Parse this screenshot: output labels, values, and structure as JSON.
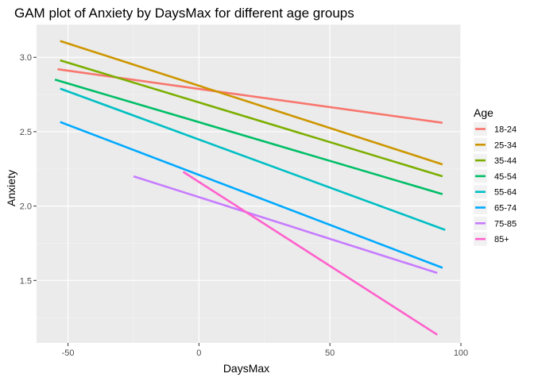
{
  "chart_data": {
    "type": "line",
    "title": "GAM plot of Anxiety by DaysMax for different age groups",
    "xlabel": "DaysMax",
    "ylabel": "Anxiety",
    "xlim": [
      -62,
      100
    ],
    "ylim": [
      1.08,
      3.22
    ],
    "xticks": [
      -50,
      0,
      50,
      100
    ],
    "xtick_labels": [
      "-50",
      "0",
      "50",
      "100"
    ],
    "yticks": [
      1.5,
      2.0,
      2.5,
      3.0
    ],
    "ytick_labels": [
      "1.5",
      "2.0",
      "2.5",
      "3.0"
    ],
    "grid": true,
    "legend": {
      "title": "Age",
      "placement": "right"
    },
    "series": [
      {
        "name": "18-24",
        "color": "#F8766D",
        "x": [
          -54,
          93
        ],
        "y": [
          2.92,
          2.56
        ]
      },
      {
        "name": "25-34",
        "color": "#CD9600",
        "x": [
          -53,
          93
        ],
        "y": [
          3.11,
          2.28
        ]
      },
      {
        "name": "35-44",
        "color": "#7CAE00",
        "x": [
          -53,
          93
        ],
        "y": [
          2.98,
          2.2
        ]
      },
      {
        "name": "45-54",
        "color": "#00BE67",
        "x": [
          -55,
          93
        ],
        "y": [
          2.85,
          2.08
        ]
      },
      {
        "name": "55-64",
        "color": "#00BFC4",
        "x": [
          -53,
          94
        ],
        "y": [
          2.79,
          1.84
        ]
      },
      {
        "name": "65-74",
        "color": "#00A9FF",
        "x": [
          -53,
          93
        ],
        "y": [
          2.565,
          1.585
        ]
      },
      {
        "name": "75-85",
        "color": "#C77CFF",
        "x": [
          -25,
          91
        ],
        "y": [
          2.2,
          1.55
        ]
      },
      {
        "name": "85+",
        "color": "#FF61CC",
        "x": [
          -6,
          91
        ],
        "y": [
          2.23,
          1.135
        ]
      }
    ]
  }
}
